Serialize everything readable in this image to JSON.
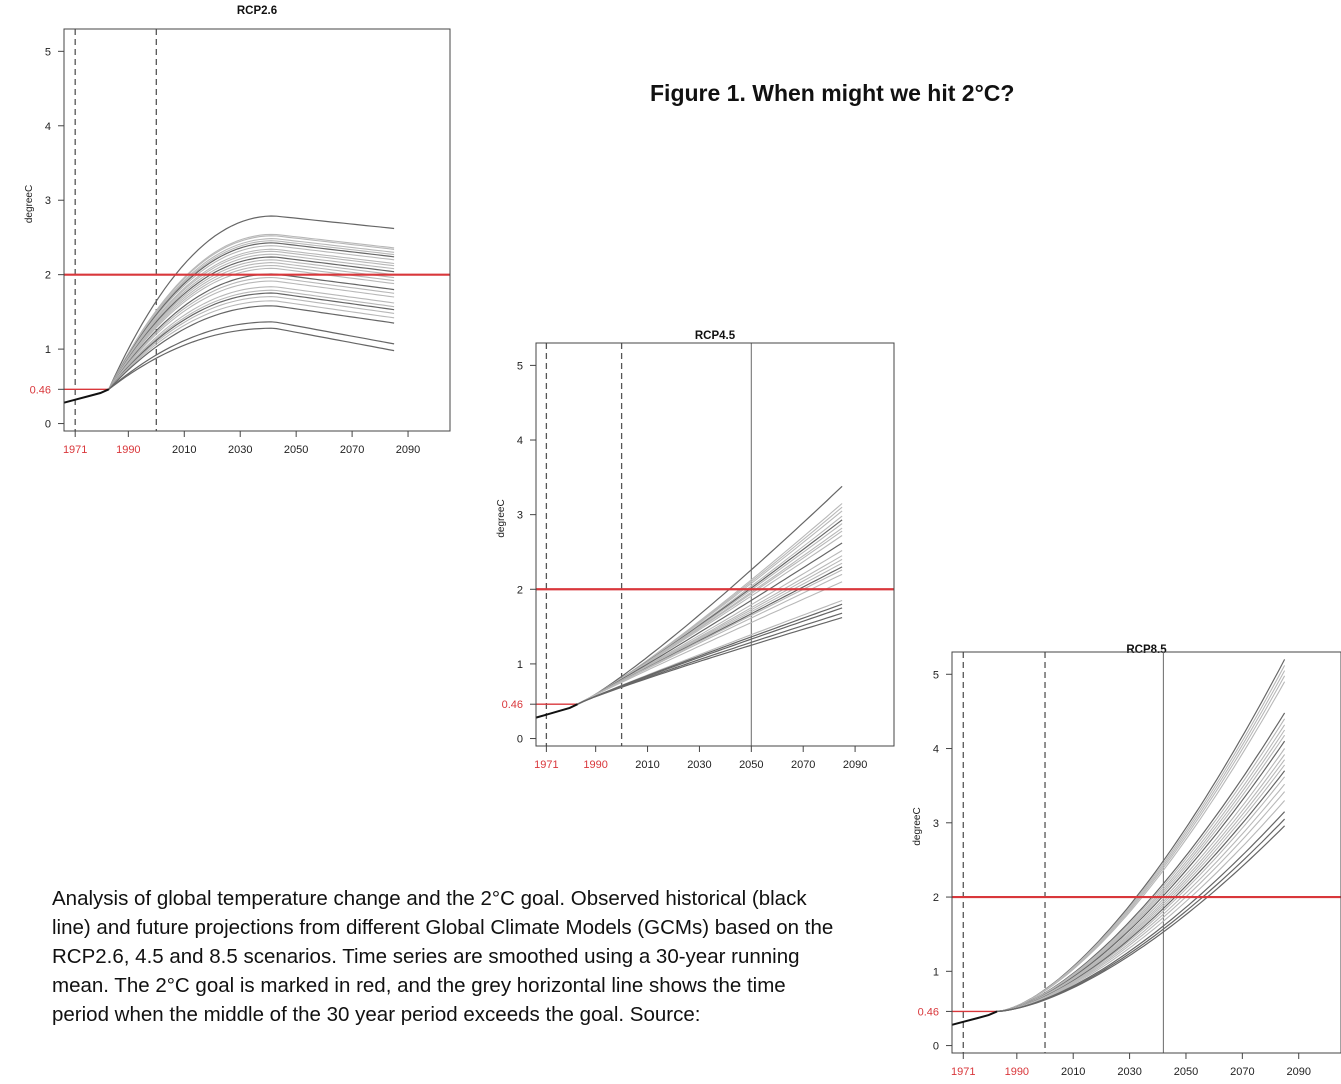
{
  "figure_title": "Figure 1. When might we hit 2°C?",
  "caption": "Analysis of global temperature change and the 2°C goal. Observed historical (black line) and future projections from different Global Climate Models (GCMs) based on the RCP2.6, 4.5 and 8.5 scenarios. Time series are smoothed using a 30-year running mean. The 2°C goal is marked in red, and the grey horizontal line shows the time period when the middle of the 30 year period exceeds the goal. Source:",
  "colors": {
    "goal_line": "#d9373b",
    "projection": "#b8b8b8",
    "projection_dark": "#666666",
    "observed": "#111111",
    "red_label": "#d9373b"
  },
  "chart_data": [
    {
      "type": "line",
      "title": "RCP2.6",
      "ylabel": "degreeC",
      "xlabel": "",
      "xlim": [
        1967,
        2105
      ],
      "ylim": [
        -0.1,
        5.3
      ],
      "x_ticks": [
        1971,
        1990,
        2010,
        2030,
        2050,
        2070,
        2090
      ],
      "x_ticks_red": [
        1971,
        1990
      ],
      "y_ticks": [
        "0",
        "1",
        "2",
        "3",
        "4",
        "5"
      ],
      "y_tick_highlight": "0.46",
      "goal": 2,
      "baseline_value": 0.46,
      "dashed_lines_x": [
        1971,
        2000
      ],
      "crossing_year": null,
      "observed": {
        "x": [
          1967,
          1971,
          1976,
          1980,
          1983
        ],
        "y": [
          0.28,
          0.32,
          0.37,
          0.41,
          0.46
        ]
      },
      "projection_start_year": 1983,
      "projection_end_year": 2085,
      "end_values": [
        2.62,
        2.36,
        2.34,
        2.3,
        2.27,
        2.24,
        2.2,
        2.15,
        2.12,
        2.08,
        2.04,
        2.0,
        1.96,
        1.92,
        1.88,
        1.8,
        1.75,
        1.7,
        1.62,
        1.57,
        1.53,
        1.48,
        1.42,
        1.35,
        1.07,
        0.98
      ]
    },
    {
      "type": "line",
      "title": "RCP4.5",
      "ylabel": "degreeC",
      "xlabel": "",
      "xlim": [
        1967,
        2105
      ],
      "ylim": [
        -0.1,
        5.3
      ],
      "x_ticks": [
        1971,
        1990,
        2010,
        2030,
        2050,
        2070,
        2090
      ],
      "x_ticks_red": [
        1971,
        1990
      ],
      "y_ticks": [
        "0",
        "1",
        "2",
        "3",
        "4",
        "5"
      ],
      "y_tick_highlight": "0.46",
      "goal": 2,
      "baseline_value": 0.46,
      "dashed_lines_x": [
        1971,
        2000
      ],
      "crossing_year": 2050,
      "observed": {
        "x": [
          1967,
          1971,
          1976,
          1980,
          1983
        ],
        "y": [
          0.28,
          0.32,
          0.37,
          0.41,
          0.46
        ]
      },
      "projection_start_year": 1983,
      "projection_end_year": 2085,
      "end_values": [
        3.38,
        3.15,
        3.1,
        3.05,
        2.98,
        2.93,
        2.88,
        2.82,
        2.78,
        2.72,
        2.62,
        2.52,
        2.45,
        2.4,
        2.35,
        2.3,
        2.26,
        2.2,
        2.1,
        1.85,
        1.8,
        1.75,
        1.68,
        1.62
      ]
    },
    {
      "type": "line",
      "title": "RCP8.5",
      "ylabel": "degreeC",
      "xlabel": "",
      "xlim": [
        1967,
        2105
      ],
      "ylim": [
        -0.1,
        5.3
      ],
      "x_ticks": [
        1971,
        1990,
        2010,
        2030,
        2050,
        2070,
        2090
      ],
      "x_ticks_red": [
        1971,
        1990
      ],
      "y_ticks": [
        "0",
        "1",
        "2",
        "3",
        "4",
        "5"
      ],
      "y_tick_highlight": "0.46",
      "goal": 2,
      "baseline_value": 0.46,
      "dashed_lines_x": [
        1971,
        2000
      ],
      "crossing_year": 2042,
      "observed": {
        "x": [
          1967,
          1971,
          1976,
          1980,
          1983
        ],
        "y": [
          0.28,
          0.32,
          0.37,
          0.41,
          0.46
        ]
      },
      "projection_start_year": 1983,
      "projection_end_year": 2085,
      "end_values": [
        5.2,
        5.12,
        5.05,
        4.98,
        4.9,
        4.48,
        4.4,
        4.32,
        4.25,
        4.18,
        4.1,
        4.0,
        3.92,
        3.85,
        3.78,
        3.7,
        3.62,
        3.52,
        3.42,
        3.3,
        3.15,
        3.05,
        2.96
      ]
    }
  ]
}
